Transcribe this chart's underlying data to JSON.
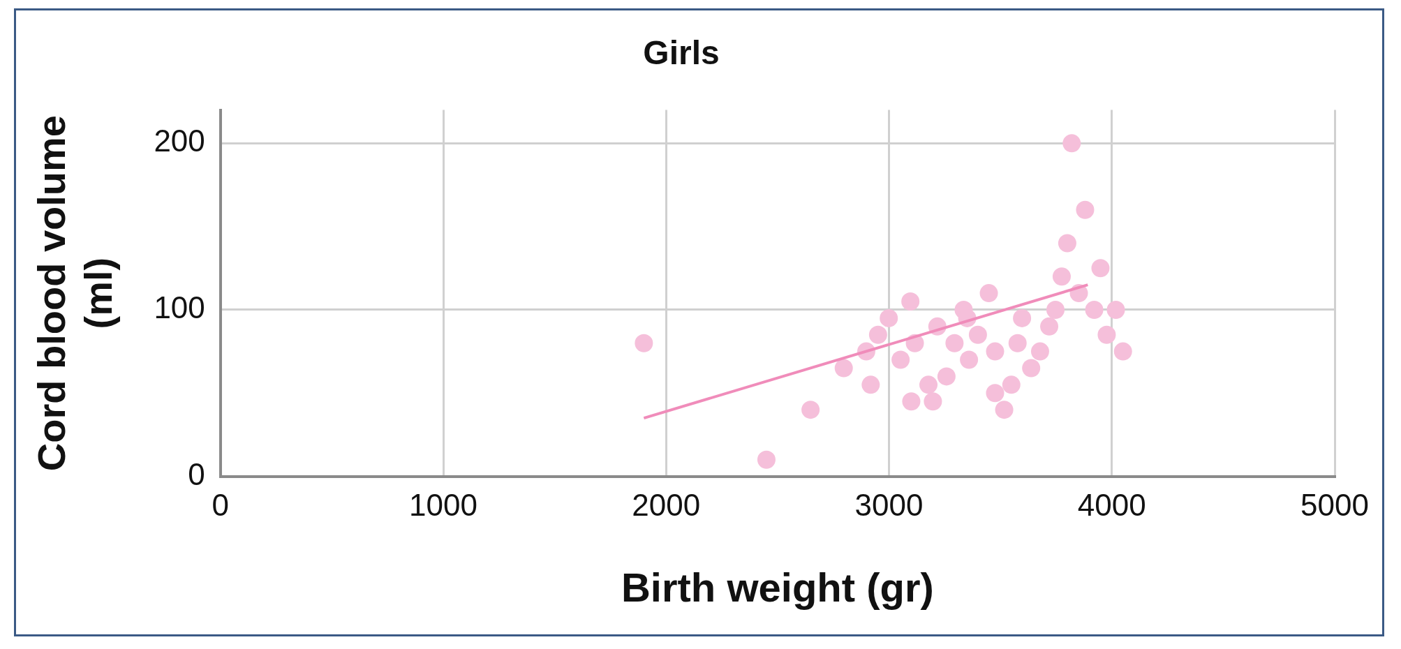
{
  "chart_data": {
    "type": "scatter",
    "title": "Girls",
    "xlabel": "Birth weight (gr)",
    "ylabel": "Cord blood volume (ml)",
    "xlim": [
      0,
      5000
    ],
    "xticks": [
      0,
      1000,
      2000,
      3000,
      4000,
      5000
    ],
    "ylim": [
      0,
      220
    ],
    "yticks": [
      0,
      100,
      200
    ],
    "grid": true,
    "legend": false,
    "marker": "circle",
    "series": [
      {
        "type": "scatter",
        "color": "#f5bfda",
        "x": [
          1900,
          2450,
          2648,
          2797,
          2898,
          2918,
          2951,
          2999,
          3052,
          3096,
          3100,
          3116,
          3177,
          3197,
          3217,
          3258,
          3294,
          3335,
          3351,
          3359,
          3399,
          3448,
          3476,
          3476,
          3517,
          3549,
          3577,
          3597,
          3638,
          3678,
          3719,
          3747,
          3775,
          3800,
          3820,
          3852,
          3880,
          3921,
          3949,
          3977,
          4018,
          4050
        ],
        "values": [
          80,
          10,
          40,
          65,
          75,
          55,
          85,
          95,
          70,
          105,
          45,
          80,
          55,
          45,
          90,
          60,
          80,
          100,
          95,
          70,
          85,
          110,
          75,
          50,
          40,
          55,
          80,
          95,
          65,
          75,
          90,
          100,
          120,
          140,
          200,
          110,
          160,
          100,
          125,
          85,
          100,
          75
        ]
      },
      {
        "type": "line",
        "color": "#f08cba",
        "marker": "none",
        "line_style": "solid",
        "x": [
          1900,
          3892
        ],
        "values": [
          35,
          115
        ]
      }
    ]
  }
}
